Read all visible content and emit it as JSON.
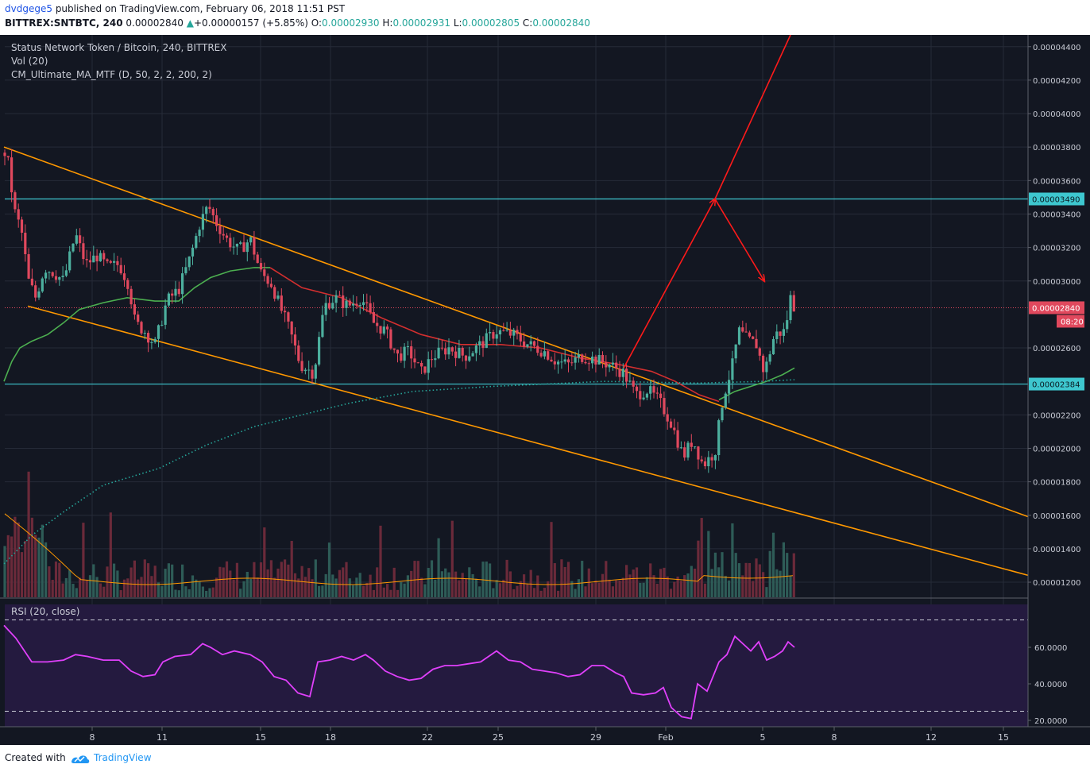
{
  "header": {
    "author": "dvdgege5",
    "published_text": "published on TradingView.com, February 06, 2018 11:51 PST",
    "symbol": "BITTREX:SNTBTC, 240",
    "price": "0.00002840",
    "change": "+0.00000157 (+5.85%)",
    "change_arrow": "▲",
    "o_label": "O:",
    "o_val": "0.00002930",
    "h_label": "H:",
    "h_val": "0.00002931",
    "l_label": "L:",
    "l_val": "0.00002805",
    "c_label": "C:",
    "c_val": "0.00002840"
  },
  "legend": {
    "title": "Status Network Token / Bitcoin, 240, BITTREX",
    "vol": "Vol (20)",
    "ma": "CM_Ultimate_MA_MTF (D, 50, 2, 2, 200, 2)",
    "rsi": "RSI (20, close)"
  },
  "footer": {
    "created": "Created with",
    "brand": "TradingView"
  },
  "colors": {
    "background": "#131722",
    "rsi_background": "#241a3f",
    "up": "#4caf9e",
    "down": "#e0485d",
    "trendline": "#ff9800",
    "hline": "#3ec7cf",
    "projection": "#ff1a1a",
    "ma_red": "#d32f2f",
    "ma_green": "#4caf50",
    "ma_dotted": "#26a69a",
    "rsi_line": "#e040fb",
    "vol_ma": "#ff9800"
  },
  "chart_data": {
    "type": "candlestick",
    "price_axis": {
      "ticks": [
        "0.00004400",
        "0.00004200",
        "0.00004000",
        "0.00003800",
        "0.00003600",
        "0.00003400",
        "0.00003200",
        "0.00003000",
        "0.00002600",
        "0.00002200",
        "0.00002000",
        "0.00001800",
        "0.00001600",
        "0.00001400",
        "0.00001200"
      ],
      "ylim": [
        1.11e-05,
        4.47e-05
      ]
    },
    "date_axis": [
      "8",
      "11",
      "15",
      "18",
      "22",
      "25",
      "29",
      "Feb",
      "5",
      "8",
      "12",
      "15"
    ],
    "horizontal_lines": [
      {
        "label": "0.00003490",
        "value": 3.49e-05
      },
      {
        "label": "0.00002384",
        "value": 2.384e-05
      }
    ],
    "last_price": {
      "label": "0.00002840",
      "countdown": "08:20",
      "value": 2.84e-05
    },
    "rsi_axis": [
      "60.0000",
      "40.0000",
      "20.0000"
    ],
    "rsi_levels": [
      75,
      25
    ],
    "series": [
      {
        "name": "Price (close)",
        "points": [
          [
            0,
            3.8e-05
          ],
          [
            9,
            3.75e-05
          ],
          [
            18,
            3.42e-05
          ],
          [
            27,
            3.3e-05
          ],
          [
            36,
            3e-05
          ],
          [
            45,
            2.9e-05
          ],
          [
            56,
            3.08e-05
          ],
          [
            68,
            3.05e-05
          ],
          [
            80,
            3e-05
          ],
          [
            95,
            3.28e-05
          ],
          [
            108,
            3.1e-05
          ],
          [
            122,
            3.15e-05
          ],
          [
            136,
            3.08e-05
          ],
          [
            150,
            3.1e-05
          ],
          [
            162,
            2.98e-05
          ],
          [
            170,
            2.75e-05
          ],
          [
            182,
            2.7e-05
          ],
          [
            195,
            2.62e-05
          ],
          [
            210,
            2.88e-05
          ],
          [
            225,
            2.95e-05
          ],
          [
            240,
            3.15e-05
          ],
          [
            252,
            3.35e-05
          ],
          [
            262,
            3.45e-05
          ],
          [
            272,
            3.35e-05
          ],
          [
            285,
            3.25e-05
          ],
          [
            300,
            3.18e-05
          ],
          [
            315,
            3.25e-05
          ],
          [
            328,
            3.05e-05
          ],
          [
            342,
            2.98e-05
          ],
          [
            352,
            2.85e-05
          ],
          [
            365,
            2.7e-05
          ],
          [
            378,
            2.5e-05
          ],
          [
            395,
            2.45e-05
          ],
          [
            408,
            2.85e-05
          ],
          [
            422,
            2.9e-05
          ],
          [
            438,
            2.85e-05
          ],
          [
            455,
            2.9e-05
          ],
          [
            470,
            2.75e-05
          ],
          [
            485,
            2.7e-05
          ],
          [
            500,
            2.55e-05
          ],
          [
            515,
            2.58e-05
          ],
          [
            530,
            2.45e-05
          ],
          [
            545,
            2.55e-05
          ],
          [
            565,
            2.6e-05
          ],
          [
            585,
            2.55e-05
          ],
          [
            605,
            2.62e-05
          ],
          [
            625,
            2.7e-05
          ],
          [
            645,
            2.68e-05
          ],
          [
            665,
            2.62e-05
          ],
          [
            685,
            2.58e-05
          ],
          [
            700,
            2.52e-05
          ],
          [
            715,
            2.5e-05
          ],
          [
            732,
            2.55e-05
          ],
          [
            750,
            2.53e-05
          ],
          [
            768,
            2.5e-05
          ],
          [
            785,
            2.45e-05
          ],
          [
            800,
            2.32e-05
          ],
          [
            815,
            2.35e-05
          ],
          [
            830,
            2.28e-05
          ],
          [
            845,
            2.15e-05
          ],
          [
            860,
            1.95e-05
          ],
          [
            872,
            2.05e-05
          ],
          [
            885,
            1.9e-05
          ],
          [
            900,
            1.98e-05
          ],
          [
            910,
            2.3e-05
          ],
          [
            922,
            2.5e-05
          ],
          [
            930,
            2.7e-05
          ],
          [
            940,
            2.65e-05
          ],
          [
            952,
            2.62e-05
          ],
          [
            962,
            2.45e-05
          ],
          [
            975,
            2.68e-05
          ],
          [
            988,
            2.7e-05
          ],
          [
            995,
            2.9e-05
          ],
          [
            1000,
            2.84e-05
          ]
        ]
      },
      {
        "name": "MA red",
        "points": [
          [
            340,
            3.08e-05
          ],
          [
            380,
            2.96e-05
          ],
          [
            430,
            2.9e-05
          ],
          [
            480,
            2.78e-05
          ],
          [
            530,
            2.68e-05
          ],
          [
            580,
            2.62e-05
          ],
          [
            630,
            2.62e-05
          ],
          [
            680,
            2.6e-05
          ],
          [
            730,
            2.54e-05
          ],
          [
            780,
            2.5e-05
          ],
          [
            820,
            2.46e-05
          ],
          [
            850,
            2.4e-05
          ],
          [
            880,
            2.32e-05
          ],
          [
            905,
            2.28e-05
          ]
        ]
      },
      {
        "name": "MA green",
        "points": [
          [
            5,
            2.4e-05
          ],
          [
            15,
            2.52e-05
          ],
          [
            25,
            2.6e-05
          ],
          [
            40,
            2.64e-05
          ],
          [
            60,
            2.68e-05
          ],
          [
            80,
            2.75e-05
          ],
          [
            100,
            2.83e-05
          ],
          [
            130,
            2.87e-05
          ],
          [
            160,
            2.9e-05
          ],
          [
            195,
            2.88e-05
          ],
          [
            225,
            2.88e-05
          ],
          [
            245,
            2.96e-05
          ],
          [
            265,
            3.02e-05
          ],
          [
            290,
            3.06e-05
          ],
          [
            320,
            3.08e-05
          ],
          [
            340,
            3.08e-05
          ]
        ]
      },
      {
        "name": "MA green 2",
        "points": [
          [
            905,
            2.29e-05
          ],
          [
            925,
            2.34e-05
          ],
          [
            945,
            2.37e-05
          ],
          [
            965,
            2.4e-05
          ],
          [
            985,
            2.44e-05
          ],
          [
            1000,
            2.48e-05
          ]
        ]
      },
      {
        "name": "MA dotted",
        "points": [
          [
            5,
            1.31e-05
          ],
          [
            40,
            1.48e-05
          ],
          [
            80,
            1.62e-05
          ],
          [
            130,
            1.78e-05
          ],
          [
            200,
            1.88e-05
          ],
          [
            260,
            2.02e-05
          ],
          [
            320,
            2.13e-05
          ],
          [
            380,
            2.2e-05
          ],
          [
            440,
            2.27e-05
          ],
          [
            520,
            2.34e-05
          ],
          [
            620,
            2.37e-05
          ],
          [
            760,
            2.4e-05
          ],
          [
            880,
            2.39e-05
          ],
          [
            960,
            2.4e-05
          ],
          [
            1000,
            2.41e-05
          ]
        ]
      },
      {
        "name": "RSI",
        "points": [
          [
            5,
            72
          ],
          [
            20,
            65
          ],
          [
            40,
            52
          ],
          [
            60,
            52
          ],
          [
            80,
            53
          ],
          [
            95,
            56
          ],
          [
            110,
            55
          ],
          [
            130,
            53
          ],
          [
            150,
            53
          ],
          [
            165,
            47
          ],
          [
            180,
            44
          ],
          [
            195,
            45
          ],
          [
            205,
            52
          ],
          [
            220,
            55
          ],
          [
            240,
            56
          ],
          [
            255,
            62
          ],
          [
            265,
            60
          ],
          [
            280,
            56
          ],
          [
            295,
            58
          ],
          [
            315,
            56
          ],
          [
            330,
            52
          ],
          [
            345,
            44
          ],
          [
            360,
            42
          ],
          [
            375,
            35
          ],
          [
            390,
            33
          ],
          [
            400,
            52
          ],
          [
            415,
            53
          ],
          [
            430,
            55
          ],
          [
            445,
            53
          ],
          [
            460,
            56
          ],
          [
            470,
            53
          ],
          [
            485,
            47
          ],
          [
            500,
            44
          ],
          [
            515,
            42
          ],
          [
            530,
            43
          ],
          [
            545,
            48
          ],
          [
            560,
            50
          ],
          [
            575,
            50
          ],
          [
            590,
            51
          ],
          [
            605,
            52
          ],
          [
            625,
            58
          ],
          [
            640,
            53
          ],
          [
            655,
            52
          ],
          [
            670,
            48
          ],
          [
            685,
            47
          ],
          [
            700,
            46
          ],
          [
            715,
            44
          ],
          [
            730,
            45
          ],
          [
            745,
            50
          ],
          [
            760,
            50
          ],
          [
            775,
            46
          ],
          [
            785,
            44
          ],
          [
            795,
            35
          ],
          [
            810,
            34
          ],
          [
            825,
            35
          ],
          [
            835,
            38
          ],
          [
            845,
            27
          ],
          [
            858,
            22
          ],
          [
            870,
            21
          ],
          [
            878,
            40
          ],
          [
            890,
            36
          ],
          [
            905,
            52
          ],
          [
            915,
            56
          ],
          [
            925,
            66
          ],
          [
            935,
            62
          ],
          [
            945,
            58
          ],
          [
            955,
            63
          ],
          [
            965,
            53
          ],
          [
            975,
            55
          ],
          [
            985,
            58
          ],
          [
            992,
            63
          ],
          [
            1000,
            60
          ]
        ]
      }
    ],
    "trendlines": [
      {
        "name": "upper",
        "from": [
          5,
          3.8e-05
        ],
        "to": [
          1295,
          1.59e-05
        ]
      },
      {
        "name": "lower",
        "from": [
          35,
          2.85e-05
        ],
        "to": [
          1295,
          1.24e-05
        ]
      }
    ],
    "projection_arrows": [
      {
        "from": [
          785,
          2.48e-05
        ],
        "to": [
          900,
          3.49e-05
        ]
      },
      {
        "from": [
          900,
          3.49e-05
        ],
        "to": [
          962,
          3e-05
        ]
      },
      {
        "from": [
          900,
          3.49e-05
        ],
        "to": [
          995,
          4.47e-05
        ]
      }
    ],
    "volume": {
      "ylim": [
        0,
        100
      ]
    }
  }
}
